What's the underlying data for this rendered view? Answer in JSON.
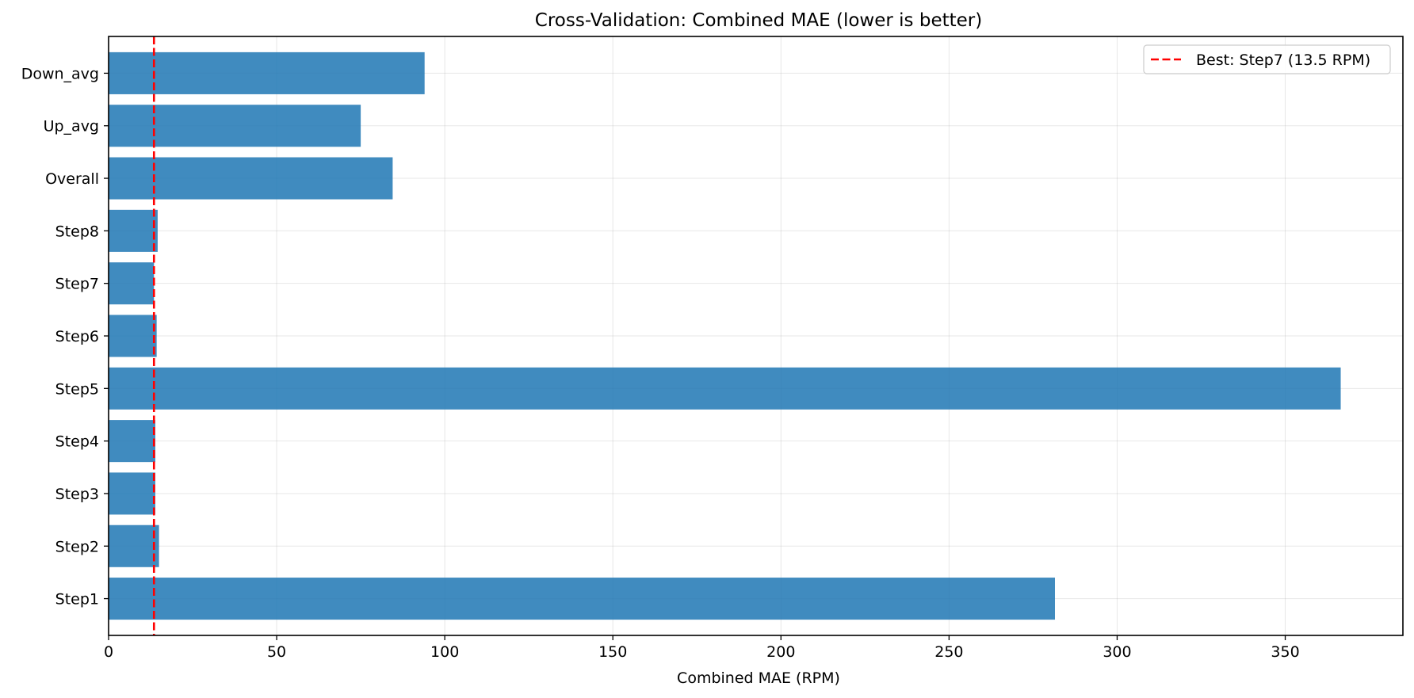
{
  "chart_data": {
    "type": "bar",
    "orientation": "horizontal",
    "title": "Cross-Validation: Combined MAE (lower is better)",
    "xlabel": "Combined MAE (RPM)",
    "ylabel": "",
    "categories": [
      "Step1",
      "Step2",
      "Step3",
      "Step4",
      "Step5",
      "Step6",
      "Step7",
      "Step8",
      "Overall",
      "Up_avg",
      "Down_avg"
    ],
    "values": [
      281.5,
      15.0,
      13.9,
      13.9,
      366.5,
      14.3,
      13.5,
      14.6,
      84.5,
      75.0,
      94.0
    ],
    "xlim": [
      0,
      385
    ],
    "xticks": [
      0,
      50,
      100,
      150,
      200,
      250,
      300,
      350
    ],
    "xtick_labels": [
      "0",
      "50",
      "100",
      "150",
      "200",
      "250",
      "300",
      "350"
    ],
    "grid": true,
    "bar_color": "#1f77b4",
    "reference_line": {
      "value": 13.5,
      "style": "dashed",
      "color": "#ff0000",
      "label": "Best: Step7 (13.5 RPM)"
    },
    "legend": {
      "placement": "top-right",
      "entries": [
        "Best: Step7 (13.5 RPM)"
      ]
    }
  }
}
